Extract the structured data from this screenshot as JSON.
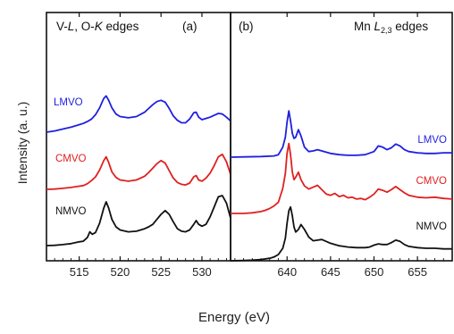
{
  "figure": {
    "ylabel": "Intensity (a. u.)",
    "xlabel": "Energy (eV)"
  },
  "chart_data": [
    {
      "type": "line",
      "panel": "(a)",
      "title": "V-L, O-K edges",
      "title_parts": [
        {
          "text": "V-",
          "italic": false
        },
        {
          "text": "L",
          "italic": true
        },
        {
          "text": ", O-",
          "italic": false
        },
        {
          "text": "K",
          "italic": true
        },
        {
          "text": " edges",
          "italic": false
        }
      ],
      "xlabel": "Energy (eV)",
      "ylabel": "Intensity (a. u.)",
      "xlim": [
        511,
        533.5
      ],
      "ylim": [
        0,
        10
      ],
      "xticks": [
        515,
        520,
        525,
        530
      ],
      "y_tick_labels": false,
      "grid": false,
      "series": [
        {
          "name": "LMVO",
          "color": "#1f1fe0",
          "x": [
            511,
            512,
            513,
            514,
            515,
            515.5,
            516,
            516.5,
            517,
            517.5,
            518,
            518.3,
            518.6,
            519,
            519.5,
            520,
            521,
            522,
            523,
            523.5,
            524,
            524.5,
            525,
            525.5,
            526,
            526.5,
            527,
            527.5,
            528,
            528.5,
            529,
            529.3,
            529.6,
            530,
            530.5,
            531,
            531.5,
            532,
            532.5,
            533,
            533.5
          ],
          "y": [
            6.0,
            6.1,
            6.25,
            6.4,
            6.6,
            6.7,
            6.85,
            7.05,
            7.4,
            7.95,
            8.7,
            8.9,
            8.55,
            7.95,
            7.45,
            7.25,
            7.15,
            7.25,
            7.6,
            7.9,
            8.2,
            8.45,
            8.55,
            8.4,
            7.9,
            7.3,
            6.95,
            6.75,
            6.75,
            7.05,
            7.55,
            7.6,
            7.2,
            7.0,
            7.1,
            7.2,
            7.35,
            7.5,
            7.45,
            7.2,
            6.9
          ]
        },
        {
          "name": "CMVO",
          "color": "#e02020",
          "x": [
            511,
            512,
            513,
            514,
            515,
            515.5,
            516,
            516.5,
            517,
            517.5,
            518,
            518.3,
            518.6,
            519,
            519.5,
            520,
            521,
            522,
            523,
            523.5,
            524,
            524.5,
            525,
            525.5,
            526,
            526.5,
            527,
            527.5,
            528,
            528.5,
            529,
            529.3,
            529.6,
            530,
            530.5,
            531,
            531.5,
            532,
            532.5,
            533,
            533.5
          ],
          "y": [
            3.7,
            3.72,
            3.78,
            3.85,
            3.95,
            4.0,
            4.15,
            4.4,
            4.7,
            5.25,
            6.0,
            6.3,
            5.85,
            5.1,
            4.65,
            4.45,
            4.35,
            4.45,
            4.75,
            5.05,
            5.4,
            5.75,
            6.0,
            5.8,
            5.2,
            4.6,
            4.25,
            4.1,
            4.05,
            4.2,
            4.7,
            4.8,
            4.45,
            4.35,
            4.6,
            5.0,
            5.6,
            6.3,
            6.5,
            5.9,
            4.9
          ]
        },
        {
          "name": "NMVO",
          "color": "#111111",
          "x": [
            511,
            512,
            513,
            514,
            515,
            515.5,
            516,
            516.3,
            516.6,
            517,
            517.5,
            518,
            518.3,
            518.6,
            519,
            519.5,
            520,
            521,
            522,
            523,
            523.5,
            524,
            524.5,
            525,
            525.5,
            526,
            526.5,
            527,
            527.5,
            528,
            528.5,
            529,
            529.3,
            529.6,
            530,
            530.5,
            531,
            531.5,
            532,
            532.5,
            533,
            533.5
          ],
          "y": [
            0.6,
            0.62,
            0.68,
            0.76,
            0.9,
            0.95,
            1.25,
            1.7,
            1.5,
            1.65,
            2.4,
            3.6,
            4.1,
            3.6,
            2.7,
            2.1,
            1.85,
            1.7,
            1.75,
            1.95,
            2.1,
            2.3,
            2.7,
            3.1,
            3.4,
            3.1,
            2.5,
            1.95,
            1.75,
            1.7,
            1.85,
            2.3,
            2.6,
            2.3,
            2.15,
            2.3,
            2.9,
            3.7,
            4.5,
            4.6,
            4.0,
            2.8
          ]
        }
      ],
      "labels": [
        {
          "text": "LMVO",
          "color": "#1f1fe0"
        },
        {
          "text": "CMVO",
          "color": "#e02020"
        },
        {
          "text": "NMVO",
          "color": "#111111"
        }
      ]
    },
    {
      "type": "line",
      "panel": "(b)",
      "title": "Mn L2,3 edges",
      "title_parts": [
        {
          "text": "Mn ",
          "italic": false
        },
        {
          "text": "L",
          "italic": true
        },
        {
          "text": "2,3",
          "subscript": true
        },
        {
          "text": " edges",
          "italic": false
        }
      ],
      "xlabel": "Energy (eV)",
      "ylabel": "Intensity (a. u.)",
      "xlim": [
        633.5,
        659
      ],
      "ylim": [
        0,
        10
      ],
      "xticks": [
        640,
        645,
        650,
        655
      ],
      "y_tick_labels": false,
      "grid": false,
      "series": [
        {
          "name": "LMVO",
          "color": "#1f1fe0",
          "x": [
            633.5,
            635,
            637,
            638.5,
            639,
            639.5,
            639.8,
            640,
            640.2,
            640.4,
            640.6,
            640.8,
            641,
            641.3,
            641.6,
            642,
            642.5,
            643,
            643.5,
            644,
            645,
            646,
            647,
            648,
            649,
            650,
            650.5,
            651,
            651.5,
            652,
            652.5,
            653,
            653.5,
            654,
            655,
            656,
            657,
            658,
            659
          ],
          "y": [
            6.7,
            6.72,
            6.75,
            6.8,
            6.9,
            7.5,
            8.3,
            9.5,
            10.4,
            9.6,
            8.6,
            8.2,
            8.3,
            8.9,
            8.4,
            7.5,
            7.15,
            7.2,
            7.3,
            7.2,
            7.0,
            6.9,
            6.85,
            6.85,
            6.9,
            7.15,
            7.6,
            7.5,
            7.3,
            7.45,
            7.75,
            7.6,
            7.3,
            7.15,
            7.05,
            7.0,
            7.0,
            7.05,
            7.05
          ]
        },
        {
          "name": "CMVO",
          "color": "#e02020",
          "x": [
            633.5,
            635,
            636,
            637,
            637.5,
            638,
            638.5,
            639,
            639.5,
            639.8,
            640,
            640.2,
            640.4,
            640.6,
            640.8,
            641,
            641.3,
            641.6,
            642,
            642.5,
            643,
            643.5,
            644,
            644.5,
            645,
            645.5,
            646,
            646.5,
            647,
            647.5,
            648,
            648.5,
            649,
            649.5,
            650,
            650.5,
            651,
            651.5,
            652,
            652.5,
            653,
            653.5,
            654,
            655,
            656,
            657,
            658,
            659
          ],
          "y": [
            3.3,
            3.3,
            3.35,
            3.45,
            3.55,
            3.7,
            3.9,
            4.2,
            5.3,
            6.5,
            8.1,
            8.9,
            8.0,
            6.6,
            6.0,
            6.2,
            6.6,
            6.0,
            5.5,
            5.25,
            5.4,
            5.55,
            5.2,
            4.85,
            4.75,
            4.9,
            4.65,
            4.75,
            4.55,
            4.6,
            4.45,
            4.5,
            4.4,
            4.6,
            4.85,
            5.25,
            5.15,
            5.0,
            5.2,
            5.45,
            5.2,
            4.95,
            4.75,
            4.6,
            4.55,
            4.6,
            4.5,
            4.45
          ]
        },
        {
          "name": "NMVO",
          "color": "#111111",
          "x": [
            633.5,
            635,
            636,
            637,
            638,
            638.5,
            639,
            639.5,
            639.8,
            640,
            640.2,
            640.4,
            640.6,
            640.8,
            641,
            641.3,
            641.6,
            642,
            642.5,
            643,
            643.5,
            644,
            645,
            646,
            647,
            648,
            649,
            649.5,
            650,
            650.5,
            651,
            651.5,
            652,
            652.5,
            653,
            653.5,
            654,
            655,
            656,
            657,
            658,
            659
          ],
          "y": [
            0.3,
            0.32,
            0.35,
            0.4,
            0.5,
            0.6,
            0.8,
            1.3,
            2.1,
            3.3,
            4.3,
            4.6,
            3.9,
            3.0,
            2.6,
            2.8,
            3.2,
            2.8,
            2.2,
            1.9,
            1.95,
            2.0,
            1.7,
            1.5,
            1.4,
            1.35,
            1.35,
            1.4,
            1.55,
            1.65,
            1.6,
            1.6,
            1.75,
            1.95,
            1.85,
            1.6,
            1.45,
            1.35,
            1.3,
            1.3,
            1.25,
            1.25
          ]
        }
      ],
      "labels": [
        {
          "text": "LMVO",
          "color": "#1f1fe0"
        },
        {
          "text": "CMVO",
          "color": "#e02020"
        },
        {
          "text": "NMVO",
          "color": "#111111"
        }
      ]
    }
  ]
}
